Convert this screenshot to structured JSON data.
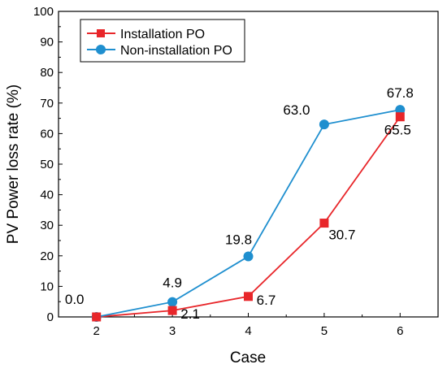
{
  "chart_data": {
    "type": "line",
    "xlabel": "Case",
    "ylabel": "PV Power loss rate (%)",
    "xlim": [
      1.5,
      6.5
    ],
    "ylim": [
      0,
      100
    ],
    "x": [
      2,
      3,
      4,
      5,
      6
    ],
    "x_ticks": [
      "2",
      "3",
      "4",
      "5",
      "6"
    ],
    "y_ticks": [
      "0",
      "10",
      "20",
      "30",
      "40",
      "50",
      "60",
      "70",
      "80",
      "90",
      "100"
    ],
    "grid": false,
    "legend_position": "top-left",
    "series": [
      {
        "name": "Installation PO",
        "marker": "square",
        "color": "#e8262a",
        "values": [
          0.0,
          2.1,
          6.7,
          30.7,
          65.5
        ],
        "labels": [
          "",
          "2.1",
          "6.7",
          "30.7",
          "65.5"
        ]
      },
      {
        "name": "Non-installation PO",
        "marker": "circle",
        "color": "#1f8fcf",
        "values": [
          0.0,
          4.9,
          19.8,
          63.0,
          67.8
        ],
        "labels": [
          "0.0",
          "4.9",
          "19.8",
          "63.0",
          "67.8"
        ]
      }
    ]
  }
}
